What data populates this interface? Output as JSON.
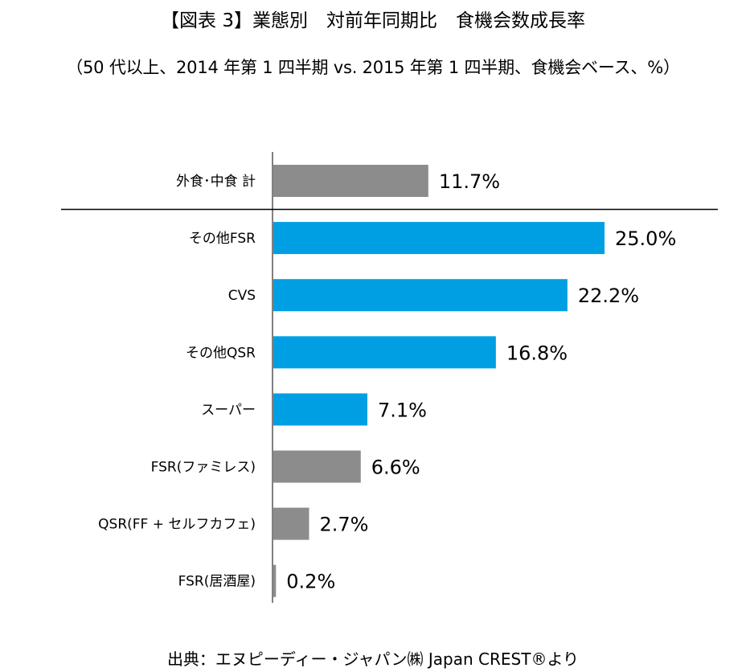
{
  "title": "【図表 3】業態別　対前年同期比　食機会数成長率",
  "subtitle": "（50 代以上、2014 年第 1 四半期 vs. 2015 年第 1 四半期、食機会ベース、%）",
  "source": "出典：エヌピーディー・ジャパン㈱ Japan CREST®より",
  "chart_data": {
    "type": "bar",
    "orientation": "horizontal",
    "categories": [
      "外食･中食 計",
      "その他FSR",
      "CVS",
      "その他QSR",
      "スーパー",
      "FSR(ファミレス)",
      "QSR(FF + セルフカフェ)",
      "FSR(居酒屋)"
    ],
    "values": [
      11.7,
      25.0,
      22.2,
      16.8,
      7.1,
      6.6,
      2.7,
      0.2
    ],
    "value_labels": [
      "11.7%",
      "25.0%",
      "22.2%",
      "16.8%",
      "7.1%",
      "6.6%",
      "2.7%",
      "0.2%"
    ],
    "bar_colors": [
      "#8c8c8c",
      "#009fe3",
      "#009fe3",
      "#009fe3",
      "#009fe3",
      "#8c8c8c",
      "#8c8c8c",
      "#8c8c8c"
    ],
    "xlim": [
      0,
      25
    ],
    "grid": false,
    "separator_after_index": 0
  }
}
